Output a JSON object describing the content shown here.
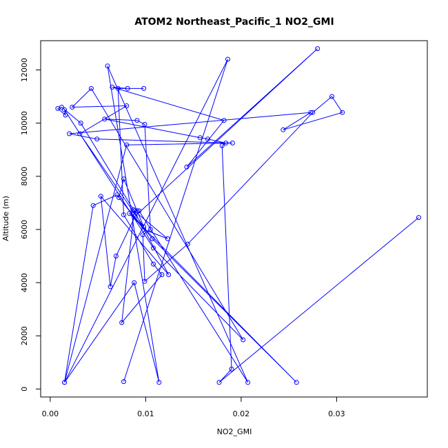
{
  "chart_data": {
    "type": "line",
    "title": "ATOM2 Northeast_Pacific_1 NO2_GMI",
    "xlabel": "NO2_GMI",
    "ylabel": "Altitude (m)",
    "xlim": [
      -0.001,
      0.0395
    ],
    "ylim": [
      -300,
      13100
    ],
    "x_ticks": [
      0.0,
      0.01,
      0.02,
      0.03
    ],
    "x_tick_labels": [
      "0.00",
      "0.01",
      "0.02",
      "0.03"
    ],
    "y_ticks": [
      0,
      2000,
      4000,
      6000,
      8000,
      10000,
      12000
    ],
    "y_tick_labels": [
      "0",
      "2000",
      "4000",
      "6000",
      "8000",
      "10000",
      "12000"
    ],
    "grid": false,
    "legend": "none",
    "style": "points connected by lines",
    "color": "#0000ff",
    "series": [
      {
        "x": [
          0.0386,
          0.0177,
          0.019,
          0.018,
          0.0184,
          0.0165,
          0.0157,
          0.0057,
          0.0091,
          0.0099,
          0.0105,
          0.0097,
          0.0099,
          0.0144,
          0.0275,
          0.0295,
          0.0306,
          0.0244,
          0.0273,
          0.002,
          0.0049,
          0.0191,
          0.008,
          0.0015,
          0.0045,
          0.007,
          0.0098,
          0.0123,
          0.0088,
          0.0075,
          0.0117,
          0.0108,
          0.0077,
          0.0071,
          0.0098,
          0.0081,
          0.0065,
          0.0182,
          0.0143,
          0.028,
          0.0089,
          0.0069,
          0.0063,
          0.0053,
          0.0124,
          0.0087,
          0.0032,
          0.0012,
          0.0008,
          0.0016,
          0.0015,
          0.0108,
          0.0202,
          0.0043,
          0.0023,
          0.008,
          0.0031,
          0.0098,
          0.0077,
          0.0072,
          0.0107,
          0.0258,
          0.0083,
          0.0091,
          0.0093,
          0.0207,
          0.006,
          0.0114,
          0.0088,
          0.0015,
          0.0186,
          0.0077
        ],
        "y": [
          6450,
          250,
          750,
          9150,
          9250,
          9400,
          9450,
          10150,
          10100,
          9950,
          6000,
          5800,
          4050,
          5450,
          10400,
          11000,
          10400,
          9750,
          10400,
          9600,
          9400,
          9250,
          9180,
          250,
          6900,
          7300,
          6000,
          5650,
          6700,
          2500,
          4300,
          4700,
          6550,
          11300,
          11300,
          11300,
          11350,
          10100,
          8350,
          12800,
          6500,
          5000,
          3850,
          7250,
          4300,
          6750,
          10000,
          10600,
          10550,
          10300,
          10500,
          5300,
          1850,
          11300,
          10600,
          10650,
          9600,
          6100,
          7900,
          7200,
          5650,
          250,
          6600,
          6700,
          6700,
          250,
          12150,
          250,
          4000,
          250,
          12400,
          280
        ]
      }
    ]
  }
}
